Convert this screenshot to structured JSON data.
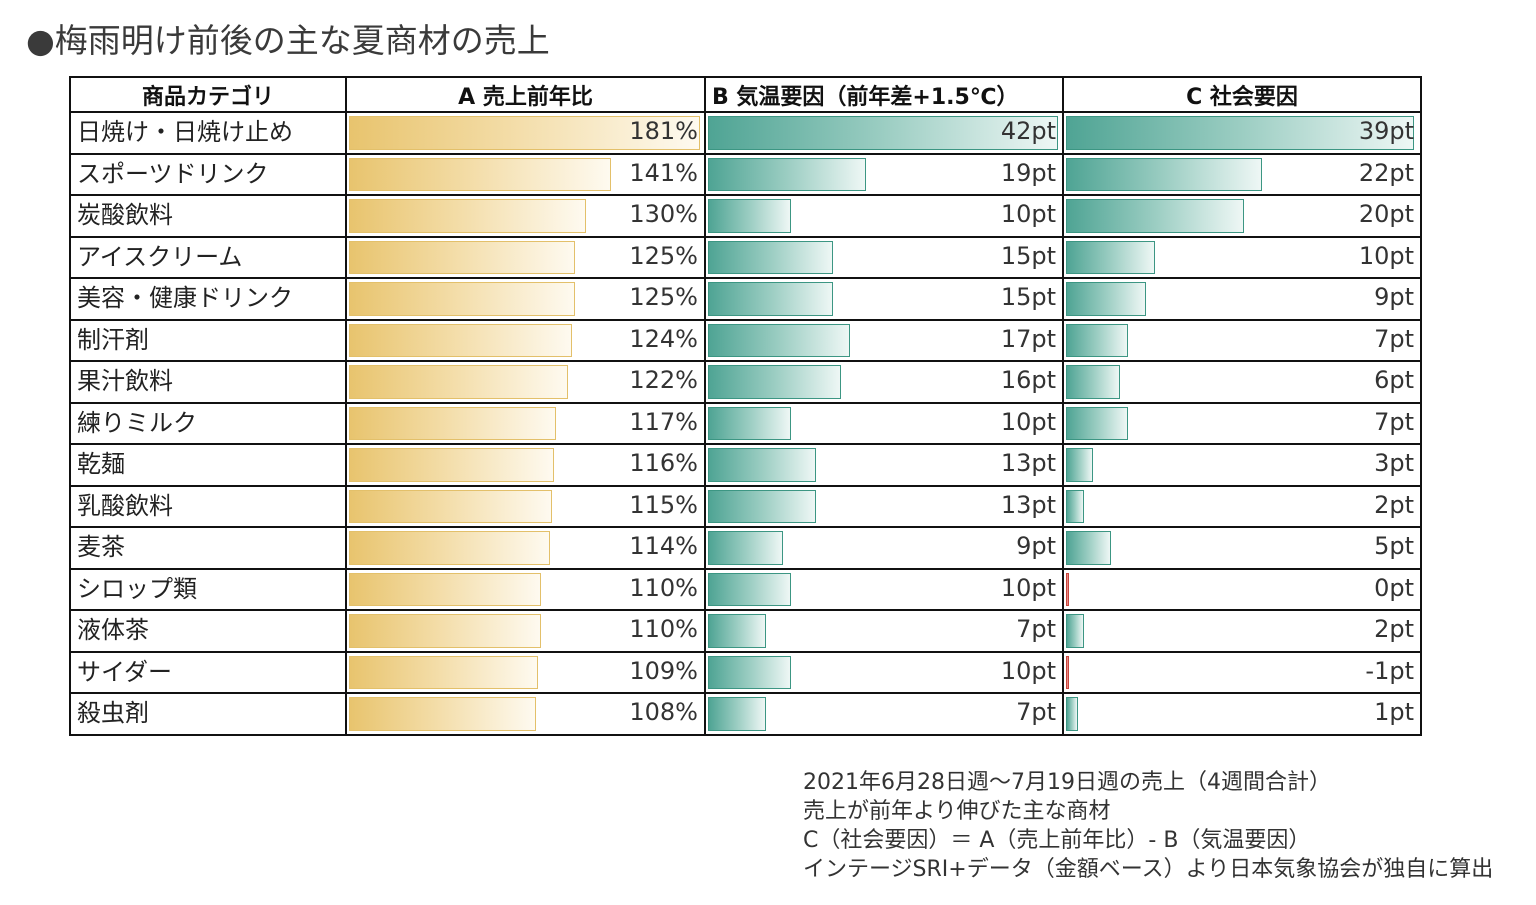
{
  "title": "●梅雨明け前後の主な夏商材の売上",
  "table": {
    "headers": [
      "商品カテゴリ",
      "A 売上前年比",
      "B 気温要因（前年差+1.5℃）",
      "C 社会要因"
    ]
  },
  "chart_data": {
    "type": "table",
    "series": [
      {
        "name": "A 売上前年比",
        "unit": "%",
        "values": [
          181,
          141,
          130,
          125,
          125,
          124,
          122,
          117,
          116,
          115,
          114,
          110,
          110,
          109,
          108
        ]
      },
      {
        "name": "B 気温要因（前年差+1.5℃）",
        "unit": "pt",
        "values": [
          42,
          19,
          10,
          15,
          15,
          17,
          16,
          10,
          13,
          13,
          9,
          10,
          7,
          10,
          7
        ]
      },
      {
        "name": "C 社会要因",
        "unit": "pt",
        "values": [
          39,
          22,
          20,
          10,
          9,
          7,
          6,
          7,
          3,
          2,
          5,
          0,
          2,
          -1,
          1
        ]
      }
    ],
    "categories": [
      "日焼け・日焼け止め",
      "スポーツドリンク",
      "炭酸飲料",
      "アイスクリーム",
      "美容・健康ドリンク",
      "制汗剤",
      "果汁飲料",
      "練りミルク",
      "乾麺",
      "乳酸飲料",
      "麦茶",
      "シロップ類",
      "液体茶",
      "サイダー",
      "殺虫剤"
    ],
    "rows": [
      {
        "category": "日焼け・日焼け止め",
        "a": 181,
        "a_label": "181%",
        "b": 42,
        "b_label": "42pt",
        "c": 39,
        "c_label": "39pt"
      },
      {
        "category": "スポーツドリンク",
        "a": 141,
        "a_label": "141%",
        "b": 19,
        "b_label": "19pt",
        "c": 22,
        "c_label": "22pt"
      },
      {
        "category": "炭酸飲料",
        "a": 130,
        "a_label": "130%",
        "b": 10,
        "b_label": "10pt",
        "c": 20,
        "c_label": "20pt"
      },
      {
        "category": "アイスクリーム",
        "a": 125,
        "a_label": "125%",
        "b": 15,
        "b_label": "15pt",
        "c": 10,
        "c_label": "10pt"
      },
      {
        "category": "美容・健康ドリンク",
        "a": 125,
        "a_label": "125%",
        "b": 15,
        "b_label": "15pt",
        "c": 9,
        "c_label": "9pt"
      },
      {
        "category": "制汗剤",
        "a": 124,
        "a_label": "124%",
        "b": 17,
        "b_label": "17pt",
        "c": 7,
        "c_label": "7pt"
      },
      {
        "category": "果汁飲料",
        "a": 122,
        "a_label": "122%",
        "b": 16,
        "b_label": "16pt",
        "c": 6,
        "c_label": "6pt"
      },
      {
        "category": "練りミルク",
        "a": 117,
        "a_label": "117%",
        "b": 10,
        "b_label": "10pt",
        "c": 7,
        "c_label": "7pt"
      },
      {
        "category": "乾麺",
        "a": 116,
        "a_label": "116%",
        "b": 13,
        "b_label": "13pt",
        "c": 3,
        "c_label": "3pt"
      },
      {
        "category": "乳酸飲料",
        "a": 115,
        "a_label": "115%",
        "b": 13,
        "b_label": "13pt",
        "c": 2,
        "c_label": "2pt"
      },
      {
        "category": "麦茶",
        "a": 114,
        "a_label": "114%",
        "b": 9,
        "b_label": "9pt",
        "c": 5,
        "c_label": "5pt"
      },
      {
        "category": "シロップ類",
        "a": 110,
        "a_label": "110%",
        "b": 10,
        "b_label": "10pt",
        "c": 0,
        "c_label": "0pt"
      },
      {
        "category": "液体茶",
        "a": 110,
        "a_label": "110%",
        "b": 7,
        "b_label": "7pt",
        "c": 2,
        "c_label": "2pt"
      },
      {
        "category": "サイダー",
        "a": 109,
        "a_label": "109%",
        "b": 10,
        "b_label": "10pt",
        "c": -1,
        "c_label": "-1pt"
      },
      {
        "category": "殺虫剤",
        "a": 108,
        "a_label": "108%",
        "b": 7,
        "b_label": "7pt",
        "c": 1,
        "c_label": "1pt"
      }
    ],
    "colors": {
      "a_bar": "#e8c46e",
      "b_bar": "#4fa494",
      "c_bar": "#4fa494",
      "negative_bar": "#c9463d"
    }
  },
  "notes": [
    "2021年6月28日週～7月19日週の売上（4週間合計）",
    "売上が前年より伸びた主な商材",
    "C（社会要因）＝ A（売上前年比）- B（気温要因）",
    "インテージSRI+データ（金額ベース）より日本気象協会が独自に算出"
  ]
}
